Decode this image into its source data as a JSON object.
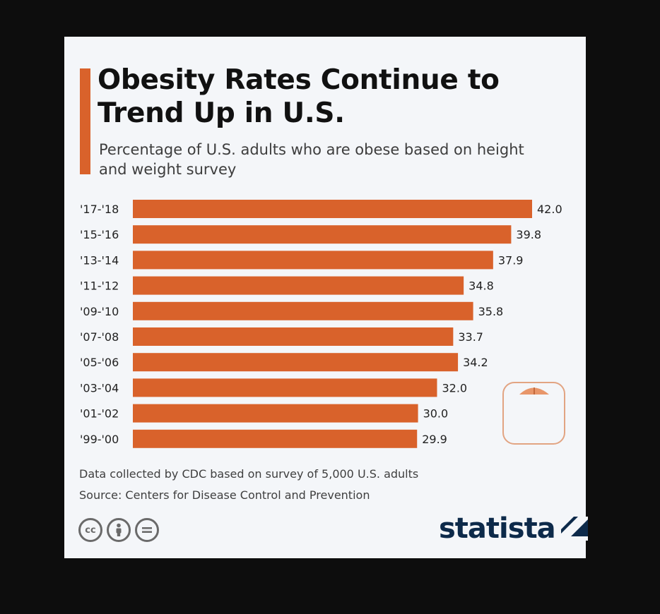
{
  "title": "Obesity Rates Continue to Trend Up in U.S.",
  "subtitle": "Percentage of U.S. adults who are obese based on height and weight survey",
  "footnote": "Data collected by CDC based on survey of 5,000 U.S. adults",
  "source": "Source: Centers for Disease Control and Prevention",
  "brand": "statista",
  "license_icons": [
    "cc-icon",
    "attribution-icon",
    "no-derivatives-icon"
  ],
  "colors": {
    "bar": "#d9622b",
    "background": "#f4f6f9",
    "brand": "#0d2a4a"
  },
  "chart_data": {
    "type": "bar",
    "orientation": "horizontal",
    "categories": [
      "'17-'18",
      "'15-'16",
      "'13-'14",
      "'11-'12",
      "'09-'10",
      "'07-'08",
      "'05-'06",
      "'03-'04",
      "'01-'02",
      "'99-'00"
    ],
    "values": [
      42.0,
      39.8,
      37.9,
      34.8,
      35.8,
      33.7,
      34.2,
      32.0,
      30.0,
      29.9
    ],
    "value_labels": [
      "42.0",
      "39.8",
      "37.9",
      "34.8",
      "35.8",
      "33.7",
      "34.2",
      "32.0",
      "30.0",
      "29.9"
    ],
    "xlim": [
      0,
      42
    ],
    "grid": false,
    "data_labels": "outside-end"
  }
}
